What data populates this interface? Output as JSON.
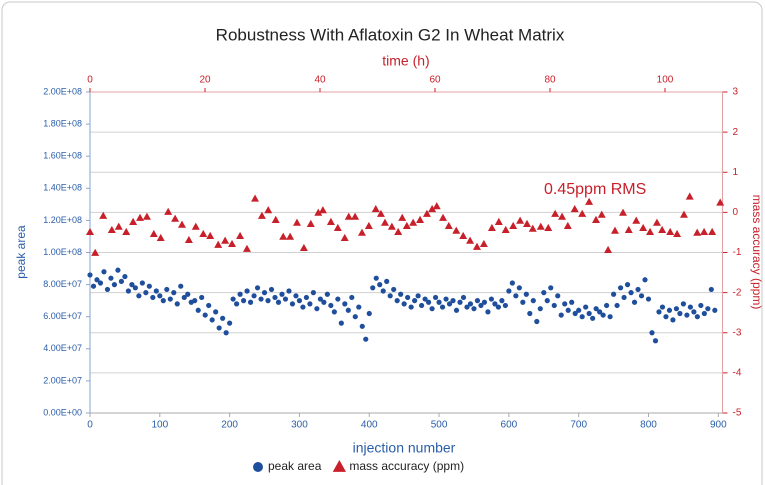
{
  "chart_data": {
    "type": "scatter",
    "title": "Robustness With Aflatoxin G2 In Wheat Matrix",
    "xlabel": "injection number",
    "x2label": "time (h)",
    "ylabel": "peak area",
    "y2label": "mass accuracy (ppm)",
    "annotation": "0.45ppm  RMS",
    "xlim": [
      0,
      906
    ],
    "xticks": [
      0,
      100,
      200,
      300,
      400,
      500,
      600,
      700,
      800,
      900
    ],
    "x2lim": [
      0,
      110
    ],
    "x2ticks": [
      0,
      20,
      40,
      60,
      80,
      100
    ],
    "ylim": [
      0,
      200000000
    ],
    "yticks": [
      {
        "value": 0,
        "label": "0.00E+00"
      },
      {
        "value": 20000000,
        "label": "2.00E+07"
      },
      {
        "value": 40000000,
        "label": "4.00E+07"
      },
      {
        "value": 60000000,
        "label": "6.00E+07"
      },
      {
        "value": 80000000,
        "label": "8.00E+07"
      },
      {
        "value": 100000000,
        "label": "1.00E+08"
      },
      {
        "value": 120000000,
        "label": "1.20E+08"
      },
      {
        "value": 140000000,
        "label": "1.40E+08"
      },
      {
        "value": 160000000,
        "label": "1.60E+08"
      },
      {
        "value": 180000000,
        "label": "1.80E+08"
      },
      {
        "value": 200000000,
        "label": "2.00E+08"
      }
    ],
    "y2lim": [
      -5,
      3
    ],
    "y2ticks": [
      -5,
      -4,
      -3,
      -2,
      -1,
      0,
      1,
      2,
      3
    ],
    "grid": true,
    "legend": "bottom",
    "series": [
      {
        "name": "peak area",
        "color": "#1f4e9c",
        "marker": "circle",
        "x": [
          0,
          5,
          10,
          15,
          20,
          25,
          30,
          35,
          40,
          45,
          50,
          55,
          60,
          65,
          70,
          75,
          80,
          85,
          90,
          95,
          100,
          105,
          110,
          115,
          120,
          125,
          130,
          135,
          140,
          145,
          150,
          155,
          160,
          165,
          170,
          175,
          180,
          185,
          190,
          195,
          200,
          205,
          210,
          215,
          220,
          225,
          230,
          235,
          240,
          245,
          250,
          255,
          260,
          265,
          270,
          275,
          280,
          285,
          290,
          295,
          300,
          305,
          310,
          315,
          320,
          325,
          330,
          335,
          340,
          345,
          350,
          355,
          360,
          365,
          370,
          375,
          380,
          385,
          390,
          395,
          400,
          405,
          410,
          415,
          420,
          425,
          430,
          435,
          440,
          445,
          450,
          455,
          460,
          465,
          470,
          475,
          480,
          485,
          490,
          495,
          500,
          505,
          510,
          515,
          520,
          525,
          530,
          535,
          540,
          545,
          550,
          555,
          560,
          565,
          570,
          575,
          580,
          585,
          590,
          595,
          600,
          605,
          610,
          615,
          620,
          625,
          630,
          635,
          640,
          645,
          650,
          655,
          660,
          665,
          670,
          675,
          680,
          685,
          690,
          695,
          700,
          705,
          710,
          715,
          720,
          725,
          730,
          735,
          740,
          745,
          750,
          755,
          760,
          765,
          770,
          775,
          780,
          785,
          790,
          795,
          800,
          805,
          810,
          815,
          820,
          825,
          830,
          835,
          840,
          845,
          850,
          855,
          860,
          865,
          870,
          875,
          880,
          885,
          890,
          895
        ],
        "values": [
          86000000.0,
          79000000.0,
          83000000.0,
          81000000.0,
          88000000.0,
          77000000.0,
          84000000.0,
          80000000.0,
          89000000.0,
          82000000.0,
          85000000.0,
          76000000.0,
          80000000.0,
          78000000.0,
          73000000.0,
          81000000.0,
          75000000.0,
          79000000.0,
          72000000.0,
          76000000.0,
          73000000.0,
          70000000.0,
          77000000.0,
          71000000.0,
          75000000.0,
          68000000.0,
          79000000.0,
          72000000.0,
          74000000.0,
          69000000.0,
          70000000.0,
          64000000.0,
          72000000.0,
          61000000.0,
          67000000.0,
          58000000.0,
          63000000.0,
          53000000.0,
          59000000.0,
          50000000.0,
          56000000.0,
          71000000.0,
          68000000.0,
          74000000.0,
          70000000.0,
          76000000.0,
          69000000.0,
          73000000.0,
          78000000.0,
          71000000.0,
          75000000.0,
          70000000.0,
          77000000.0,
          72000000.0,
          69000000.0,
          74000000.0,
          71000000.0,
          76000000.0,
          68000000.0,
          73000000.0,
          70000000.0,
          66000000.0,
          72000000.0,
          68000000.0,
          75000000.0,
          65000000.0,
          71000000.0,
          69000000.0,
          74000000.0,
          67000000.0,
          63000000.0,
          71000000.0,
          56000000.0,
          68000000.0,
          64000000.0,
          72000000.0,
          60000000.0,
          66000000.0,
          54000000.0,
          46000000.0,
          62000000.0,
          78000000.0,
          84000000.0,
          80000000.0,
          76000000.0,
          82000000.0,
          73000000.0,
          77000000.0,
          70000000.0,
          74000000.0,
          68000000.0,
          72000000.0,
          66000000.0,
          70000000.0,
          73000000.0,
          67000000.0,
          71000000.0,
          69000000.0,
          65000000.0,
          72000000.0,
          69000000.0,
          66000000.0,
          71000000.0,
          68000000.0,
          70000000.0,
          64000000.0,
          69000000.0,
          72000000.0,
          66000000.0,
          68000000.0,
          65000000.0,
          70000000.0,
          67000000.0,
          69000000.0,
          63000000.0,
          71000000.0,
          68000000.0,
          66000000.0,
          70000000.0,
          67000000.0,
          76000000.0,
          81000000.0,
          73000000.0,
          78000000.0,
          69000000.0,
          74000000.0,
          62000000.0,
          70000000.0,
          57000000.0,
          65000000.0,
          75000000.0,
          70000000.0,
          78000000.0,
          67000000.0,
          73000000.0,
          61000000.0,
          68000000.0,
          64000000.0,
          69000000.0,
          62000000.0,
          64000000.0,
          60000000.0,
          66000000.0,
          62000000.0,
          59000000.0,
          65000000.0,
          63000000.0,
          61000000.0,
          67000000.0,
          60000000.0,
          74000000.0,
          67000000.0,
          78000000.0,
          72000000.0,
          80000000.0,
          75000000.0,
          69000000.0,
          77000000.0,
          73000000.0,
          83000000.0,
          71000000.0,
          50000000.0,
          45000000.0,
          63000000.0,
          66000000.0,
          60000000.0,
          64000000.0,
          58000000.0,
          65000000.0,
          62000000.0,
          68000000.0,
          61000000.0,
          66000000.0,
          63000000.0,
          60000000.0,
          67000000.0,
          62000000.0,
          65000000.0,
          77000000.0,
          64000000.0
        ]
      },
      {
        "name": "mass accuracy (ppm)",
        "color": "#c8202a",
        "marker": "triangle",
        "axis": "y2",
        "xaxis": "x2",
        "x": [
          0,
          0.9,
          2.3,
          3.8,
          5.0,
          6.3,
          7.5,
          8.7,
          9.9,
          11.1,
          12.3,
          13.6,
          14.8,
          16.0,
          17.2,
          18.4,
          19.7,
          20.9,
          22.3,
          23.5,
          24.7,
          26.1,
          27.3,
          28.7,
          29.9,
          31.0,
          32.3,
          33.6,
          34.8,
          36.0,
          37.2,
          38.4,
          39.7,
          40.5,
          41.9,
          43.1,
          44.3,
          45.0,
          46.1,
          47.3,
          48.5,
          49.7,
          50.6,
          51.3,
          52.5,
          53.6,
          54.3,
          55.1,
          56.2,
          57.4,
          58.6,
          59.5,
          60.3,
          61.4,
          62.4,
          63.7,
          64.9,
          66.1,
          67.3,
          68.5,
          69.9,
          71.1,
          72.3,
          73.6,
          74.8,
          76.0,
          77.0,
          78.4,
          79.7,
          80.9,
          82.1,
          83.1,
          84.3,
          85.6,
          86.8,
          88.0,
          89.0,
          90.1,
          91.3,
          92.7,
          93.7,
          95.0,
          96.2,
          97.4,
          98.6,
          99.5,
          100.9,
          102.1,
          103.3,
          104.3,
          105.6,
          106.8,
          108.2,
          109.6
        ],
        "values": [
          -0.49,
          -1.01,
          -0.09,
          -0.44,
          -0.36,
          -0.49,
          -0.24,
          -0.14,
          -0.11,
          -0.54,
          -0.64,
          0.01,
          -0.16,
          -0.31,
          -0.69,
          -0.36,
          -0.54,
          -0.59,
          -0.81,
          -0.71,
          -0.79,
          -0.59,
          -0.91,
          0.34,
          -0.09,
          0.05,
          -0.19,
          -0.61,
          -0.61,
          -0.26,
          -0.89,
          -0.29,
          -0.01,
          0.05,
          -0.24,
          -0.39,
          -0.64,
          -0.11,
          -0.11,
          -0.51,
          -0.34,
          0.08,
          -0.04,
          -0.26,
          -0.36,
          -0.49,
          -0.14,
          -0.34,
          -0.26,
          -0.19,
          -0.04,
          0.08,
          0.15,
          -0.14,
          -0.34,
          -0.46,
          -0.59,
          -0.71,
          -0.86,
          -0.79,
          -0.39,
          -0.24,
          -0.44,
          -0.34,
          -0.21,
          -0.29,
          -0.41,
          -0.36,
          -0.39,
          -0.04,
          -0.11,
          -0.34,
          0.08,
          -0.04,
          0.26,
          -0.19,
          -0.06,
          -0.94,
          -0.46,
          -0.01,
          -0.44,
          -0.21,
          -0.39,
          -0.49,
          -0.26,
          -0.44,
          -0.49,
          -0.54,
          -0.06,
          0.39,
          -0.51,
          -0.49,
          -0.49,
          0.24
        ]
      }
    ]
  }
}
